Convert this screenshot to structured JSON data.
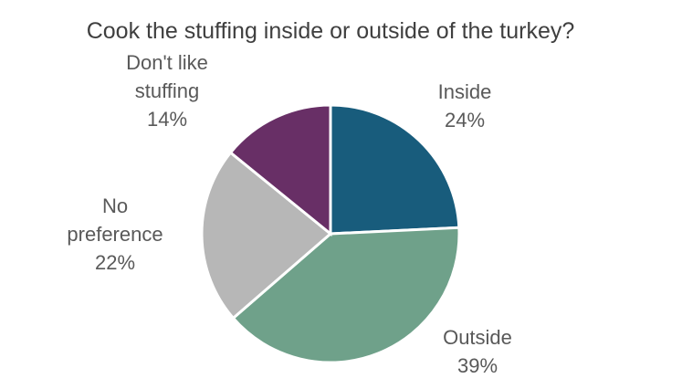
{
  "chart_data": {
    "type": "pie",
    "title": "Cook the stuffing inside or outside of the turkey?",
    "slices": [
      {
        "label": "Inside",
        "value": 24,
        "display": "24%",
        "color": "#185c7c"
      },
      {
        "label": "Outside",
        "value": 39,
        "display": "39%",
        "color": "#6fa18a"
      },
      {
        "label": "No preference",
        "value": 22,
        "display": "22%",
        "color": "#b7b7b7"
      },
      {
        "label": "Don't like stuffing",
        "value": 14,
        "display": "14%",
        "color": "#682f66"
      }
    ]
  }
}
